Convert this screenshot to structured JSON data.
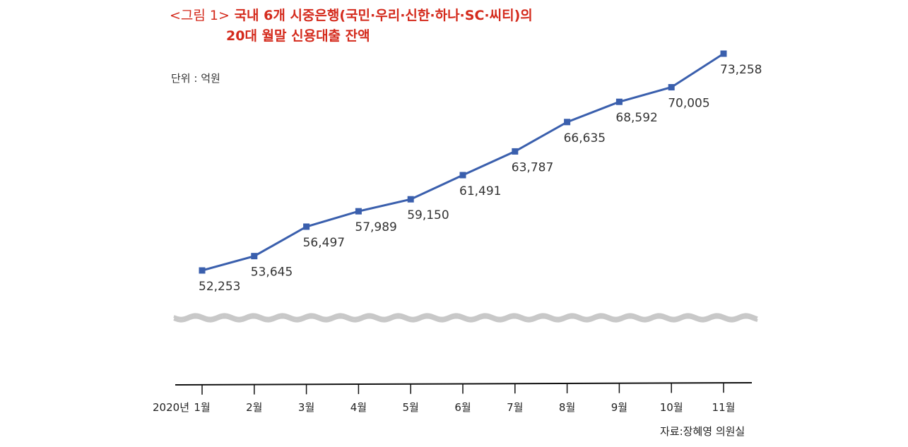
{
  "title": {
    "prefix": "<그림 1>",
    "line1": "국내 6개 시중은행(국민·우리·신한·하나·SC·씨티)의",
    "line2": "20대 월말 신용대출 잔액"
  },
  "unit_label": "단위 : 억원",
  "source_label": "자료:장혜영 의원실",
  "colors": {
    "title": "#d42a1c",
    "line": "#3a5fad",
    "marker": "#3a5fad",
    "axis_break": "#c8c8c8"
  },
  "chart_data": {
    "type": "line",
    "title": "국내 6개 시중은행(국민·우리·신한·하나·SC·씨티)의 20대 월말 신용대출 잔액",
    "unit": "억원",
    "x_prefix": "2020년",
    "categories": [
      "1월",
      "2월",
      "3월",
      "4월",
      "5월",
      "6월",
      "7월",
      "8월",
      "9월",
      "10월",
      "11월"
    ],
    "value_labels": [
      "52,253",
      "53,645",
      "56,497",
      "57,989",
      "59,150",
      "61,491",
      "63,787",
      "66,635",
      "68,592",
      "70,005",
      "73,258"
    ],
    "series": [
      {
        "name": "신용대출 잔액",
        "values": [
          52253,
          53645,
          56497,
          57989,
          59150,
          61491,
          63787,
          66635,
          68592,
          70005,
          73258
        ]
      }
    ],
    "ylim": [
      50000,
      75000
    ],
    "axis_break": true,
    "legend": "none"
  }
}
